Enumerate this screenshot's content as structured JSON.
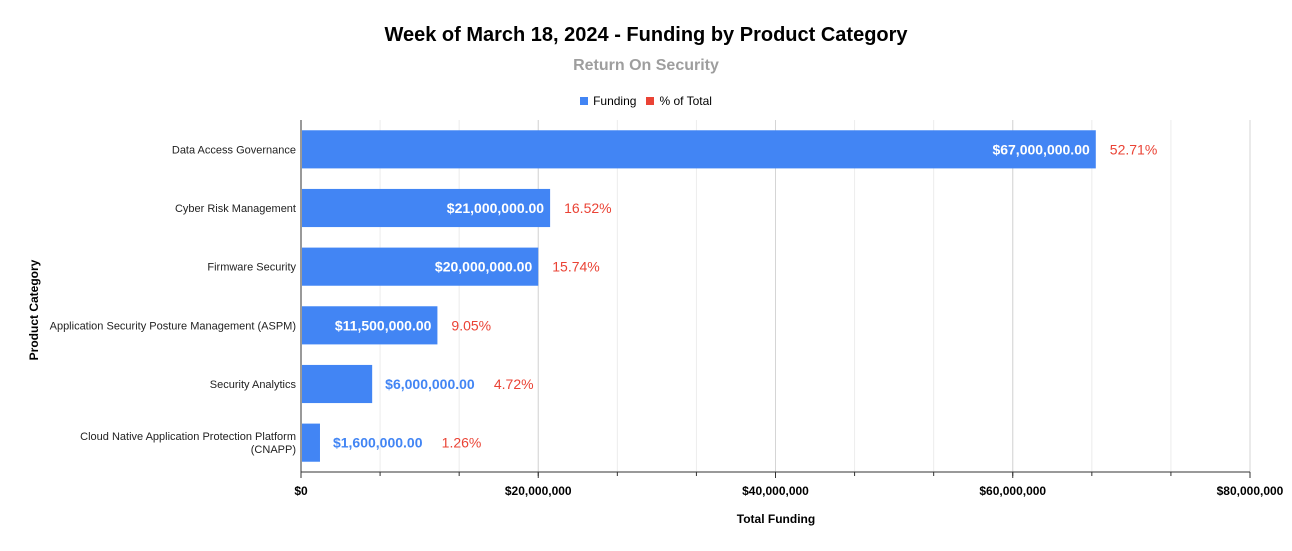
{
  "chart_data": {
    "type": "bar",
    "orientation": "horizontal",
    "title": "Week of March 18, 2024 - Funding by Product Category",
    "subtitle": "Return On Security",
    "xlabel": "Total Funding",
    "ylabel": "Product Category",
    "xlim": [
      0,
      80000000
    ],
    "x_ticks": [
      0,
      20000000,
      40000000,
      60000000,
      80000000
    ],
    "x_tick_labels": [
      "$0",
      "$20,000,000",
      "$40,000,000",
      "$60,000,000",
      "$80,000,000"
    ],
    "categories": [
      [
        "Data Access Governance"
      ],
      [
        "Cyber Risk Management"
      ],
      [
        "Firmware Security"
      ],
      [
        "Application Security Posture Management (ASPM)"
      ],
      [
        "Security Analytics"
      ],
      [
        "Cloud Native Application Protection Platform",
        "(CNAPP)"
      ]
    ],
    "series": [
      {
        "name": "Funding",
        "color": "#4285f4",
        "values": [
          67000000,
          21000000,
          20000000,
          11500000,
          6000000,
          1600000
        ],
        "labels": [
          "$67,000,000.00",
          "$21,000,000.00",
          "$20,000,000.00",
          "$11,500,000.00",
          "$6,000,000.00",
          "$1,600,000.00"
        ]
      },
      {
        "name": "% of Total",
        "color": "#ea4335",
        "values": [
          52.71,
          16.52,
          15.74,
          9.05,
          4.72,
          1.26
        ],
        "labels": [
          "52.71%",
          "16.52%",
          "15.74%",
          "9.05%",
          "4.72%",
          "1.26%"
        ]
      }
    ],
    "grid": true,
    "legend_position": "top-center"
  }
}
